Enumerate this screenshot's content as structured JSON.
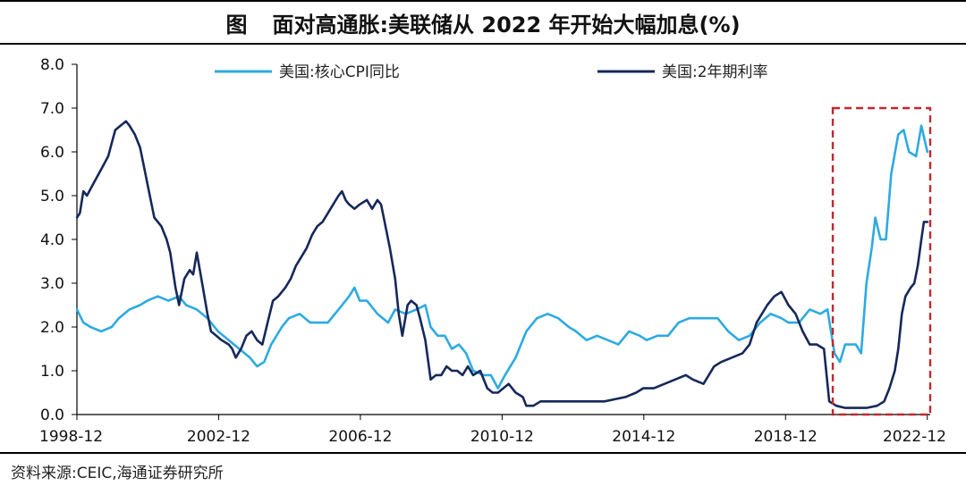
{
  "figure_label": "图",
  "source": "资料来源:CEIC,海通证券研究所",
  "colors": {
    "cpi": "#2eaae1",
    "rate": "#16285a",
    "highlight": "#c0282e",
    "axis": "#000000"
  },
  "chart_data": {
    "type": "line",
    "title": "面对高通胀:美联储从 2022 年开始大幅加息(%)",
    "xlabel": "",
    "ylabel": "",
    "xlim": [
      1998.917,
      2023.0
    ],
    "ylim": [
      0,
      8
    ],
    "yticks": [
      "0.0",
      "1.0",
      "2.0",
      "3.0",
      "4.0",
      "5.0",
      "6.0",
      "7.0",
      "8.0"
    ],
    "xticks": [
      {
        "label": "1998-12",
        "x": 1998.917
      },
      {
        "label": "2002-12",
        "x": 2002.917
      },
      {
        "label": "2006-12",
        "x": 2006.917
      },
      {
        "label": "2010-12",
        "x": 2010.917
      },
      {
        "label": "2014-12",
        "x": 2014.917
      },
      {
        "label": "2018-12",
        "x": 2018.917
      },
      {
        "label": "2022-12",
        "x": 2022.917
      }
    ],
    "legend_position": "top",
    "series": [
      {
        "name": "美国:核心CPI同比",
        "points": [
          [
            1998.92,
            2.4
          ],
          [
            1999.1,
            2.1
          ],
          [
            1999.3,
            2.0
          ],
          [
            1999.6,
            1.9
          ],
          [
            1999.9,
            2.0
          ],
          [
            2000.1,
            2.2
          ],
          [
            2000.4,
            2.4
          ],
          [
            2000.7,
            2.5
          ],
          [
            2000.9,
            2.6
          ],
          [
            2001.2,
            2.7
          ],
          [
            2001.5,
            2.6
          ],
          [
            2001.8,
            2.7
          ],
          [
            2002.0,
            2.5
          ],
          [
            2002.3,
            2.4
          ],
          [
            2002.6,
            2.2
          ],
          [
            2002.9,
            1.9
          ],
          [
            2003.2,
            1.7
          ],
          [
            2003.5,
            1.5
          ],
          [
            2003.8,
            1.3
          ],
          [
            2004.0,
            1.1
          ],
          [
            2004.2,
            1.2
          ],
          [
            2004.4,
            1.6
          ],
          [
            2004.7,
            2.0
          ],
          [
            2004.9,
            2.2
          ],
          [
            2005.2,
            2.3
          ],
          [
            2005.5,
            2.1
          ],
          [
            2005.8,
            2.1
          ],
          [
            2006.0,
            2.1
          ],
          [
            2006.3,
            2.4
          ],
          [
            2006.6,
            2.7
          ],
          [
            2006.75,
            2.9
          ],
          [
            2006.9,
            2.6
          ],
          [
            2007.1,
            2.6
          ],
          [
            2007.4,
            2.3
          ],
          [
            2007.7,
            2.1
          ],
          [
            2007.9,
            2.4
          ],
          [
            2008.2,
            2.3
          ],
          [
            2008.5,
            2.4
          ],
          [
            2008.75,
            2.5
          ],
          [
            2008.9,
            2.0
          ],
          [
            2009.1,
            1.8
          ],
          [
            2009.3,
            1.8
          ],
          [
            2009.5,
            1.5
          ],
          [
            2009.7,
            1.6
          ],
          [
            2009.9,
            1.4
          ],
          [
            2010.1,
            1.0
          ],
          [
            2010.4,
            0.9
          ],
          [
            2010.6,
            0.9
          ],
          [
            2010.8,
            0.6
          ],
          [
            2011.0,
            0.9
          ],
          [
            2011.3,
            1.3
          ],
          [
            2011.6,
            1.9
          ],
          [
            2011.9,
            2.2
          ],
          [
            2012.2,
            2.3
          ],
          [
            2012.5,
            2.2
          ],
          [
            2012.8,
            2.0
          ],
          [
            2013.0,
            1.9
          ],
          [
            2013.3,
            1.7
          ],
          [
            2013.6,
            1.8
          ],
          [
            2013.9,
            1.7
          ],
          [
            2014.2,
            1.6
          ],
          [
            2014.5,
            1.9
          ],
          [
            2014.8,
            1.8
          ],
          [
            2015.0,
            1.7
          ],
          [
            2015.3,
            1.8
          ],
          [
            2015.6,
            1.8
          ],
          [
            2015.9,
            2.1
          ],
          [
            2016.2,
            2.2
          ],
          [
            2016.5,
            2.2
          ],
          [
            2016.8,
            2.2
          ],
          [
            2017.0,
            2.2
          ],
          [
            2017.3,
            1.9
          ],
          [
            2017.6,
            1.7
          ],
          [
            2017.9,
            1.8
          ],
          [
            2018.2,
            2.1
          ],
          [
            2018.5,
            2.3
          ],
          [
            2018.8,
            2.2
          ],
          [
            2019.0,
            2.1
          ],
          [
            2019.3,
            2.1
          ],
          [
            2019.6,
            2.4
          ],
          [
            2019.9,
            2.3
          ],
          [
            2020.1,
            2.4
          ],
          [
            2020.3,
            1.4
          ],
          [
            2020.45,
            1.2
          ],
          [
            2020.6,
            1.6
          ],
          [
            2020.9,
            1.6
          ],
          [
            2021.05,
            1.4
          ],
          [
            2021.2,
            3.0
          ],
          [
            2021.35,
            3.8
          ],
          [
            2021.45,
            4.5
          ],
          [
            2021.6,
            4.0
          ],
          [
            2021.75,
            4.0
          ],
          [
            2021.9,
            5.5
          ],
          [
            2022.1,
            6.4
          ],
          [
            2022.25,
            6.5
          ],
          [
            2022.4,
            6.0
          ],
          [
            2022.6,
            5.9
          ],
          [
            2022.75,
            6.6
          ],
          [
            2022.92,
            6.0
          ]
        ]
      },
      {
        "name": "美国:2年期利率",
        "points": [
          [
            1998.92,
            4.5
          ],
          [
            1999.0,
            4.6
          ],
          [
            1999.1,
            5.1
          ],
          [
            1999.2,
            5.0
          ],
          [
            1999.4,
            5.3
          ],
          [
            1999.6,
            5.6
          ],
          [
            1999.8,
            5.9
          ],
          [
            1999.9,
            6.2
          ],
          [
            2000.0,
            6.5
          ],
          [
            2000.15,
            6.6
          ],
          [
            2000.3,
            6.7
          ],
          [
            2000.4,
            6.6
          ],
          [
            2000.55,
            6.4
          ],
          [
            2000.7,
            6.1
          ],
          [
            2000.8,
            5.7
          ],
          [
            2000.95,
            5.1
          ],
          [
            2001.1,
            4.5
          ],
          [
            2001.3,
            4.3
          ],
          [
            2001.45,
            4.0
          ],
          [
            2001.55,
            3.7
          ],
          [
            2001.7,
            2.9
          ],
          [
            2001.8,
            2.5
          ],
          [
            2001.95,
            3.1
          ],
          [
            2002.1,
            3.3
          ],
          [
            2002.2,
            3.2
          ],
          [
            2002.3,
            3.7
          ],
          [
            2002.45,
            3.0
          ],
          [
            2002.6,
            2.3
          ],
          [
            2002.7,
            1.9
          ],
          [
            2002.85,
            1.8
          ],
          [
            2003.0,
            1.7
          ],
          [
            2003.2,
            1.6
          ],
          [
            2003.3,
            1.5
          ],
          [
            2003.4,
            1.3
          ],
          [
            2003.55,
            1.5
          ],
          [
            2003.7,
            1.8
          ],
          [
            2003.85,
            1.9
          ],
          [
            2004.0,
            1.7
          ],
          [
            2004.15,
            1.6
          ],
          [
            2004.3,
            2.1
          ],
          [
            2004.45,
            2.6
          ],
          [
            2004.6,
            2.7
          ],
          [
            2004.8,
            2.9
          ],
          [
            2004.95,
            3.1
          ],
          [
            2005.1,
            3.4
          ],
          [
            2005.25,
            3.6
          ],
          [
            2005.4,
            3.8
          ],
          [
            2005.55,
            4.1
          ],
          [
            2005.7,
            4.3
          ],
          [
            2005.85,
            4.4
          ],
          [
            2006.0,
            4.6
          ],
          [
            2006.15,
            4.8
          ],
          [
            2006.3,
            5.0
          ],
          [
            2006.4,
            5.1
          ],
          [
            2006.5,
            4.9
          ],
          [
            2006.6,
            4.8
          ],
          [
            2006.75,
            4.7
          ],
          [
            2006.9,
            4.8
          ],
          [
            2007.1,
            4.9
          ],
          [
            2007.25,
            4.7
          ],
          [
            2007.4,
            4.9
          ],
          [
            2007.5,
            4.8
          ],
          [
            2007.6,
            4.4
          ],
          [
            2007.75,
            3.8
          ],
          [
            2007.9,
            3.1
          ],
          [
            2008.0,
            2.3
          ],
          [
            2008.1,
            1.8
          ],
          [
            2008.25,
            2.5
          ],
          [
            2008.35,
            2.6
          ],
          [
            2008.5,
            2.5
          ],
          [
            2008.6,
            2.2
          ],
          [
            2008.75,
            1.7
          ],
          [
            2008.9,
            0.8
          ],
          [
            2009.05,
            0.9
          ],
          [
            2009.2,
            0.9
          ],
          [
            2009.35,
            1.1
          ],
          [
            2009.5,
            1.0
          ],
          [
            2009.65,
            1.0
          ],
          [
            2009.8,
            0.9
          ],
          [
            2009.95,
            1.1
          ],
          [
            2010.1,
            0.9
          ],
          [
            2010.3,
            1.0
          ],
          [
            2010.5,
            0.6
          ],
          [
            2010.65,
            0.5
          ],
          [
            2010.8,
            0.5
          ],
          [
            2010.95,
            0.6
          ],
          [
            2011.1,
            0.7
          ],
          [
            2011.3,
            0.5
          ],
          [
            2011.5,
            0.4
          ],
          [
            2011.6,
            0.2
          ],
          [
            2011.8,
            0.2
          ],
          [
            2012.0,
            0.3
          ],
          [
            2012.3,
            0.3
          ],
          [
            2012.6,
            0.3
          ],
          [
            2012.9,
            0.3
          ],
          [
            2013.2,
            0.3
          ],
          [
            2013.5,
            0.3
          ],
          [
            2013.8,
            0.3
          ],
          [
            2014.1,
            0.35
          ],
          [
            2014.4,
            0.4
          ],
          [
            2014.7,
            0.5
          ],
          [
            2014.9,
            0.6
          ],
          [
            2015.2,
            0.6
          ],
          [
            2015.5,
            0.7
          ],
          [
            2015.8,
            0.8
          ],
          [
            2016.1,
            0.9
          ],
          [
            2016.3,
            0.8
          ],
          [
            2016.6,
            0.7
          ],
          [
            2016.9,
            1.1
          ],
          [
            2017.1,
            1.2
          ],
          [
            2017.4,
            1.3
          ],
          [
            2017.7,
            1.4
          ],
          [
            2017.9,
            1.6
          ],
          [
            2018.1,
            2.1
          ],
          [
            2018.4,
            2.5
          ],
          [
            2018.6,
            2.7
          ],
          [
            2018.8,
            2.8
          ],
          [
            2019.0,
            2.5
          ],
          [
            2019.2,
            2.3
          ],
          [
            2019.4,
            1.9
          ],
          [
            2019.6,
            1.6
          ],
          [
            2019.8,
            1.6
          ],
          [
            2020.0,
            1.5
          ],
          [
            2020.15,
            0.3
          ],
          [
            2020.35,
            0.2
          ],
          [
            2020.6,
            0.15
          ],
          [
            2020.9,
            0.15
          ],
          [
            2021.2,
            0.15
          ],
          [
            2021.5,
            0.2
          ],
          [
            2021.7,
            0.3
          ],
          [
            2021.85,
            0.6
          ],
          [
            2022.0,
            1.0
          ],
          [
            2022.1,
            1.5
          ],
          [
            2022.2,
            2.3
          ],
          [
            2022.3,
            2.7
          ],
          [
            2022.45,
            2.9
          ],
          [
            2022.55,
            3.0
          ],
          [
            2022.65,
            3.4
          ],
          [
            2022.75,
            4.0
          ],
          [
            2022.82,
            4.4
          ],
          [
            2022.92,
            4.4
          ]
        ]
      }
    ],
    "annotations": [
      {
        "type": "dashed-rect",
        "x0": 2020.25,
        "x1": 2023.0,
        "y0": 0.0,
        "y1": 7.0
      }
    ]
  }
}
